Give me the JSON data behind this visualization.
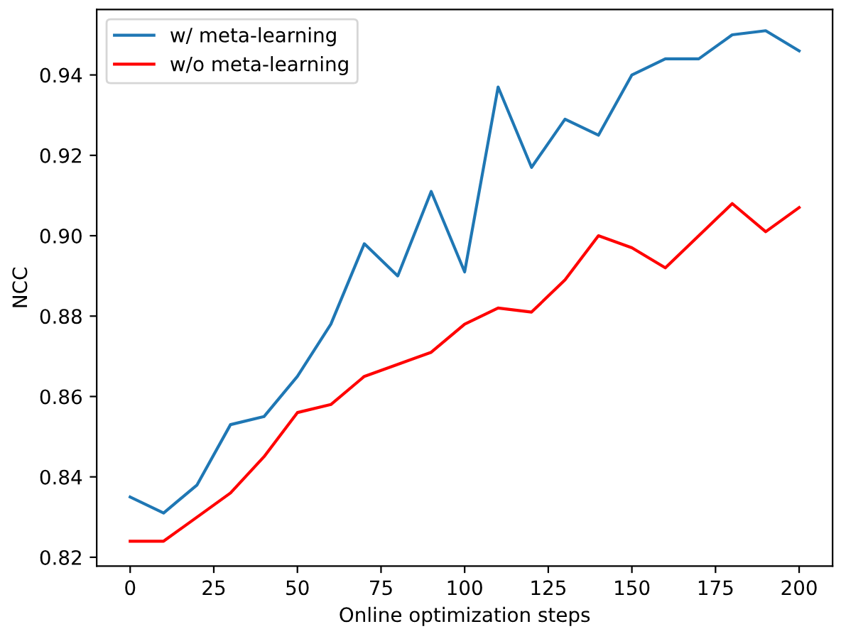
{
  "chart_data": {
    "type": "line",
    "xlabel": "Online optimization steps",
    "ylabel": "NCC",
    "x": [
      0,
      10,
      20,
      30,
      40,
      50,
      60,
      70,
      80,
      90,
      100,
      110,
      120,
      130,
      140,
      150,
      160,
      170,
      180,
      190,
      200
    ],
    "series": [
      {
        "name": "w/ meta-learning",
        "color": "#1f77b4",
        "values": [
          0.835,
          0.831,
          0.838,
          0.853,
          0.855,
          0.865,
          0.878,
          0.898,
          0.89,
          0.911,
          0.891,
          0.937,
          0.917,
          0.929,
          0.925,
          0.94,
          0.944,
          0.944,
          0.95,
          0.951,
          0.946
        ]
      },
      {
        "name": "w/o meta-learning",
        "color": "#ff0000",
        "values": [
          0.824,
          0.824,
          0.83,
          0.836,
          0.845,
          0.856,
          0.858,
          0.865,
          0.868,
          0.871,
          0.878,
          0.882,
          0.881,
          0.889,
          0.9,
          0.897,
          0.892,
          0.9,
          0.908,
          0.901,
          0.907
        ]
      }
    ],
    "xlim": [
      -10,
      210
    ],
    "xticks": [
      0,
      25,
      50,
      75,
      100,
      125,
      150,
      175,
      200
    ],
    "ylim": [
      0.8178,
      0.9563
    ],
    "yticks": [
      {
        "value": 0.82,
        "label": "0.82"
      },
      {
        "value": 0.84,
        "label": "0.84"
      },
      {
        "value": 0.86,
        "label": "0.86"
      },
      {
        "value": 0.88,
        "label": "0.88"
      },
      {
        "value": 0.9,
        "label": "0.90"
      },
      {
        "value": 0.92,
        "label": "0.92"
      },
      {
        "value": 0.94,
        "label": "0.94"
      }
    ],
    "legend": "top left",
    "grid": false,
    "marker": "none",
    "line_style": "solid"
  }
}
